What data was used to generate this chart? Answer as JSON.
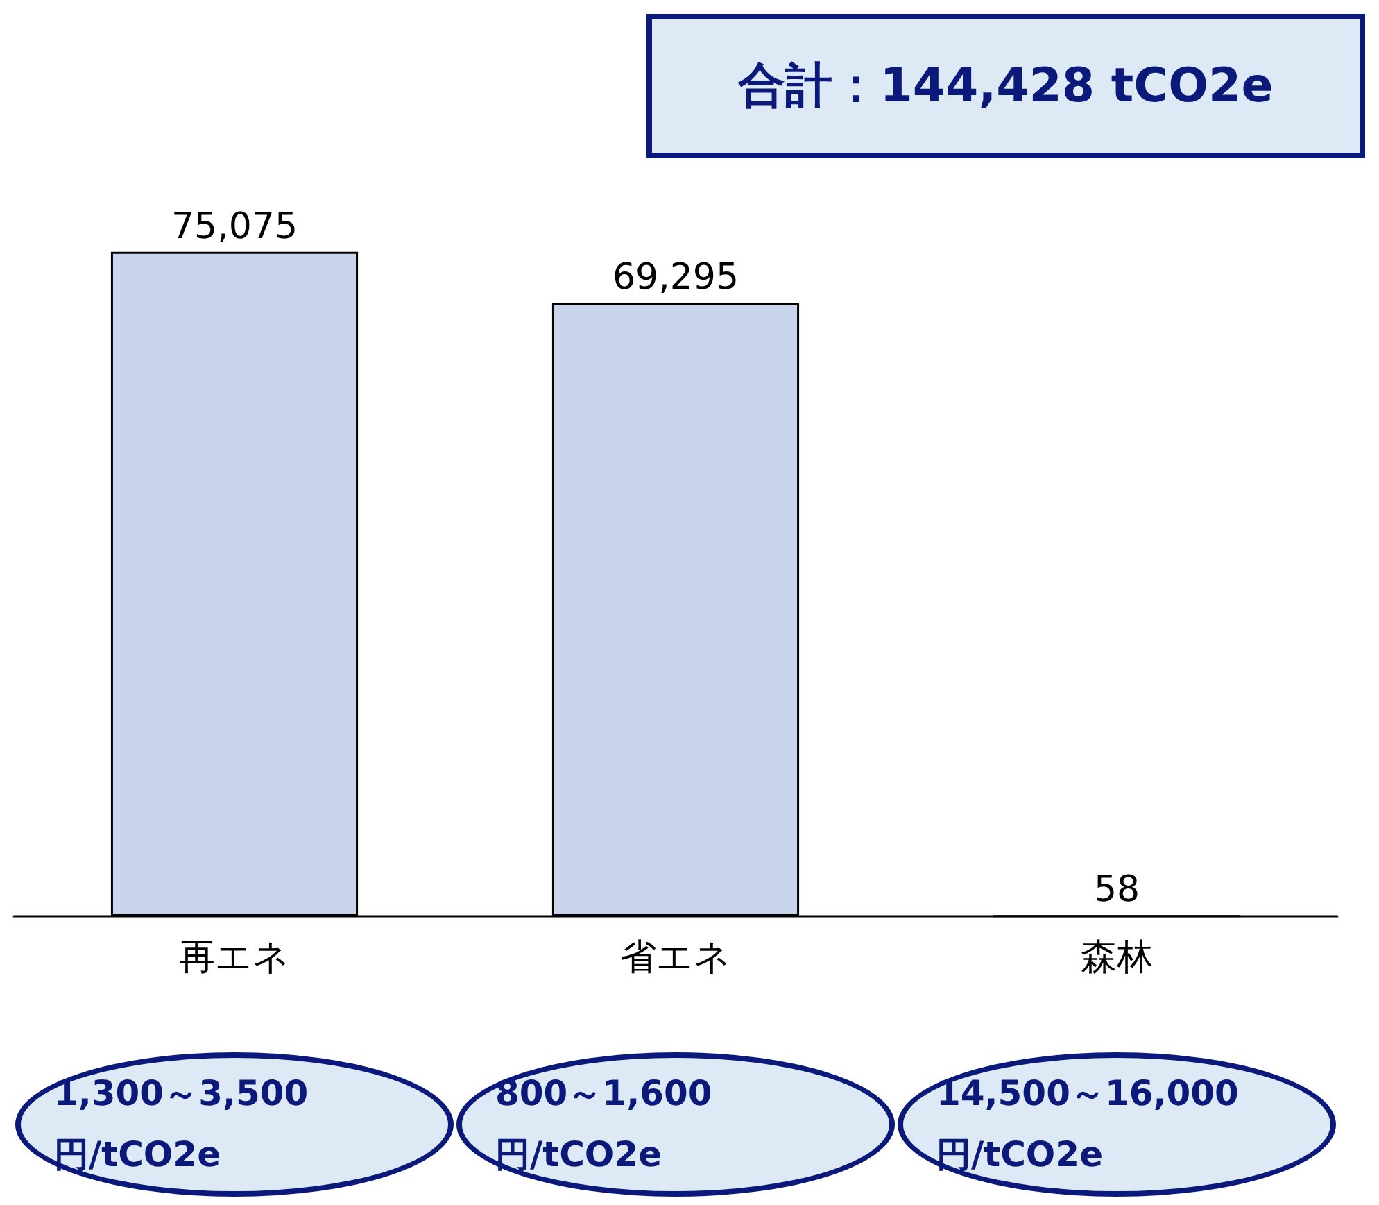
{
  "chart_data": {
    "type": "bar",
    "title": "合計：144,428 tCO2e",
    "categories": [
      "再エネ",
      "省エネ",
      "森林"
    ],
    "values": [
      75075,
      69295,
      58
    ],
    "value_labels": [
      "75,075",
      "69,295",
      "58"
    ],
    "color": "#c8d5ec",
    "annotations": [
      "1,300～3,500円/tCO2e",
      "800～1,600円/tCO2e",
      "14,500～16,000円/tCO2e"
    ]
  }
}
